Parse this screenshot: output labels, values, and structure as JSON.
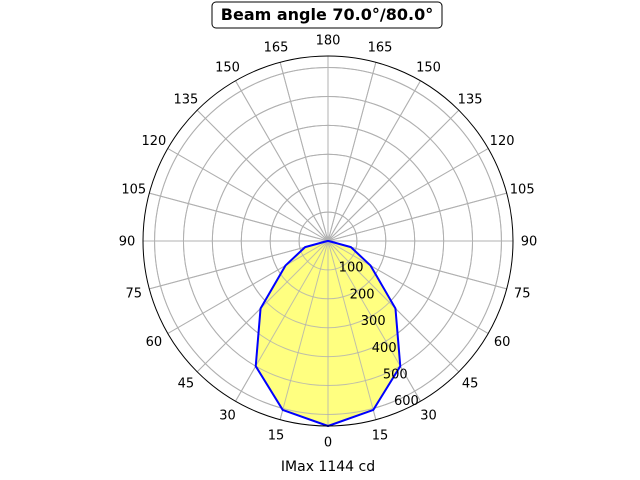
{
  "chart_data": {
    "type": "polar",
    "title": "Beam angle 70.0°/80.0°",
    "xlabel": "IMax 1144 cd",
    "angle_tick_labels": [
      "0",
      "15",
      "30",
      "45",
      "60",
      "75",
      "90",
      "105",
      "120",
      "135",
      "150",
      "165",
      "180",
      "165",
      "150",
      "135",
      "120",
      "105",
      "90",
      "75",
      "60",
      "45",
      "30",
      "15"
    ],
    "radial_tick_labels": [
      "100",
      "200",
      "300",
      "400",
      "500",
      "600"
    ],
    "radial_ticks": [
      100,
      200,
      300,
      400,
      500,
      600
    ],
    "rmax": 640,
    "grid": true,
    "series": [
      {
        "color": "#0000ff",
        "fill": "#ffff80",
        "angles_deg": [
          -90,
          -75,
          -60,
          -45,
          -30,
          -15,
          0,
          15,
          30,
          45,
          60,
          75,
          90
        ],
        "values_cd": [
          2,
          82,
          170,
          330,
          500,
          605,
          640,
          605,
          500,
          330,
          170,
          82,
          2
        ]
      }
    ]
  }
}
